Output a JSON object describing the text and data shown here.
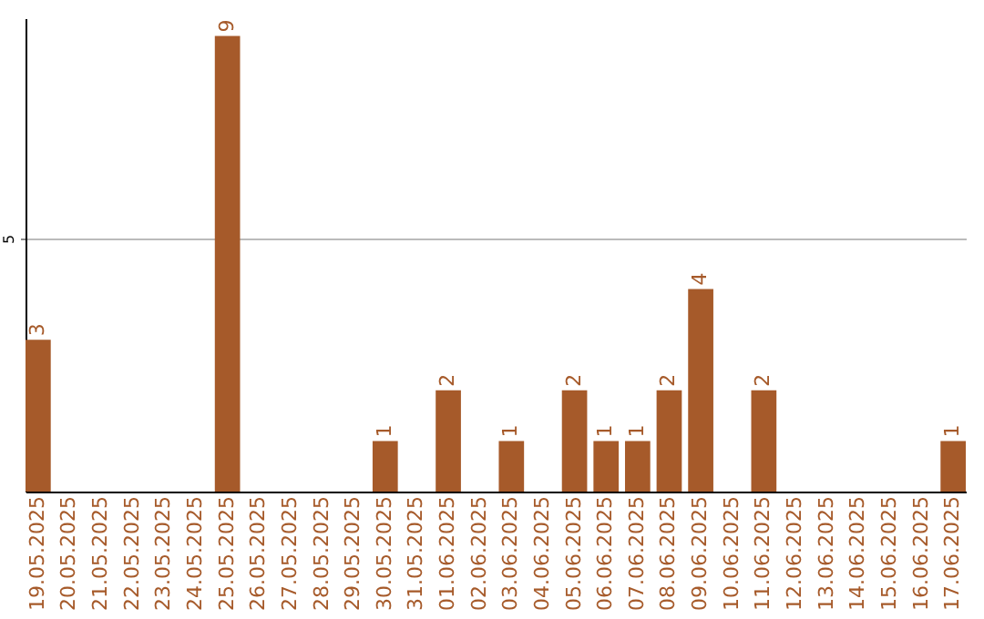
{
  "chart_data": {
    "type": "bar",
    "categories": [
      "19.05.2025",
      "20.05.2025",
      "21.05.2025",
      "22.05.2025",
      "23.05.2025",
      "24.05.2025",
      "25.05.2025",
      "26.05.2025",
      "27.05.2025",
      "28.05.2025",
      "29.05.2025",
      "30.05.2025",
      "31.05.2025",
      "01.06.2025",
      "02.06.2025",
      "03.06.2025",
      "04.06.2025",
      "05.06.2025",
      "06.06.2025",
      "07.06.2025",
      "08.06.2025",
      "09.06.2025",
      "10.06.2025",
      "11.06.2025",
      "12.06.2025",
      "13.06.2025",
      "14.06.2025",
      "15.06.2025",
      "16.06.2025",
      "17.06.2025"
    ],
    "values": [
      3,
      0,
      0,
      0,
      0,
      0,
      9,
      0,
      0,
      0,
      0,
      1,
      0,
      2,
      0,
      1,
      0,
      2,
      1,
      1,
      2,
      4,
      0,
      2,
      0,
      0,
      0,
      0,
      0,
      1
    ],
    "value_labels": [
      "3",
      null,
      null,
      null,
      null,
      null,
      "9",
      null,
      null,
      null,
      null,
      "1",
      null,
      "2",
      null,
      "1",
      null,
      "2",
      "1",
      "1",
      "2",
      "4",
      null,
      "2",
      null,
      null,
      null,
      null,
      null,
      "1"
    ],
    "color": "#a65a2a",
    "ylim": [
      0,
      9.35
    ],
    "yticks": [
      5
    ],
    "grid": "y"
  }
}
